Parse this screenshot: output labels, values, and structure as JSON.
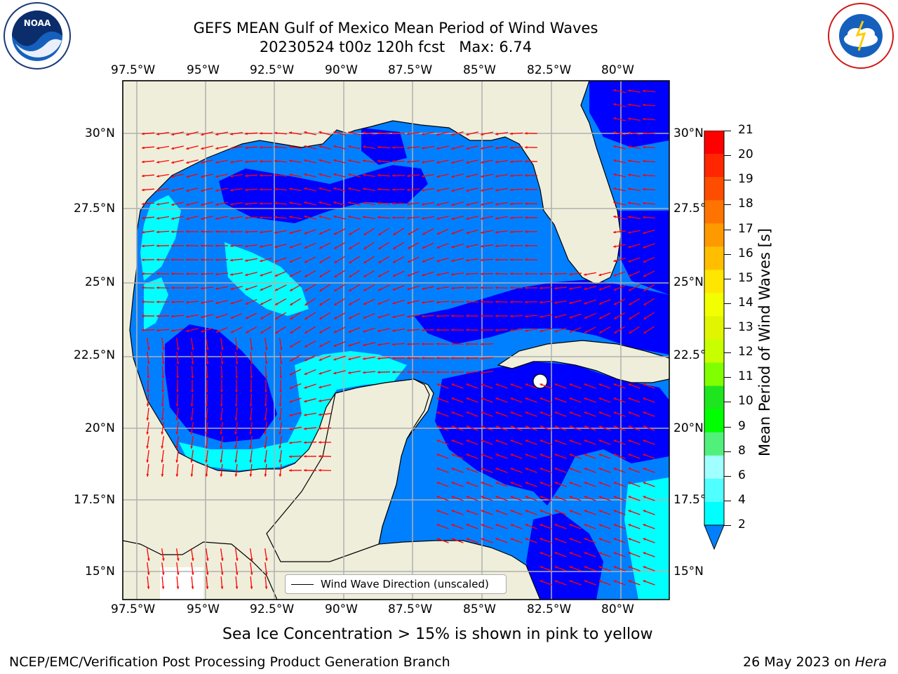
{
  "title": {
    "line1": "GEFS MEAN Gulf of Mexico Mean Period of Wind Waves",
    "line2": "20230524 t00z 120h fcst   Max: 6.74"
  },
  "map": {
    "lon_labels": [
      "97.5°W",
      "95°W",
      "92.5°W",
      "90°W",
      "87.5°W",
      "85°W",
      "82.5°W",
      "80°W"
    ],
    "lat_labels": [
      "30°N",
      "27.5°N",
      "25°N",
      "22.5°N",
      "20°N",
      "17.5°N",
      "15°N"
    ],
    "legend_label": "Wind Wave Direction (unscaled)",
    "land_color": "#efeedb",
    "arrow_color": "#ff0000"
  },
  "colorbar": {
    "label": "Mean Period of Wind Waves [s]",
    "ticks": [
      "21",
      "20",
      "19",
      "18",
      "17",
      "16",
      "15",
      "14",
      "13",
      "12",
      "11",
      "10",
      "9",
      "8",
      "6",
      "4",
      "2"
    ],
    "colors": [
      "#ff0000",
      "#ff2600",
      "#ff4d00",
      "#ff7300",
      "#ff9900",
      "#ffbf00",
      "#ffe600",
      "#f2ff00",
      "#e1f500",
      "#c8ff00",
      "#80ff00",
      "#1ee61e",
      "#00ff00",
      "#50f07a",
      "#a0ffff",
      "#50ffff",
      "#00ffff",
      "#0080ff"
    ]
  },
  "logos": {
    "noaa": "NOAA",
    "nws": "NATIONAL WEATHER SERVICE"
  },
  "footer": {
    "ice_note": "Sea Ice Concentration > 15% is shown in pink to yellow",
    "left": "NCEP/EMC/Verification Post Processing Product Generation Branch",
    "right_prefix": "26 May 2023 on ",
    "right_host": "Hera"
  }
}
